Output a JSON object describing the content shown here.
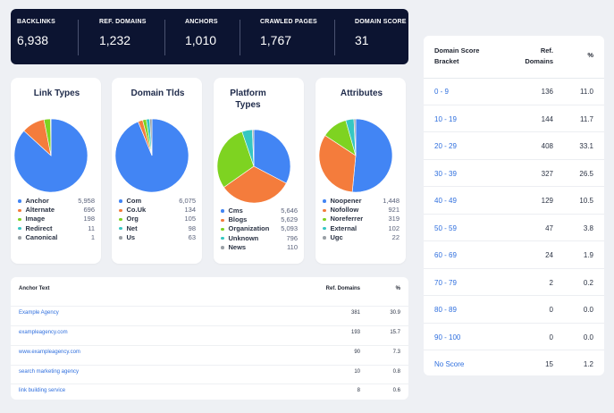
{
  "stats": [
    {
      "label": "BACKLINKS",
      "value": "6,938"
    },
    {
      "label": "REF. DOMAINS",
      "value": "1,232"
    },
    {
      "label": "ANCHORS",
      "value": "1,010"
    },
    {
      "label": "CRAWLED PAGES",
      "value": "1,767"
    },
    {
      "label": "DOMAIN SCORE",
      "value": "31"
    }
  ],
  "colors": {
    "blue": "#4285f4",
    "orange": "#f47c3c",
    "green": "#7ed321",
    "teal": "#35c7c2",
    "gray": "#9aa0a6"
  },
  "cards": [
    {
      "title": "Link Types",
      "items": [
        {
          "name": "Anchor",
          "value": "5,958",
          "color": "#4285f4"
        },
        {
          "name": "Alternate",
          "value": "696",
          "color": "#f47c3c"
        },
        {
          "name": "Image",
          "value": "198",
          "color": "#7ed321"
        },
        {
          "name": "Redirect",
          "value": "11",
          "color": "#35c7c2"
        },
        {
          "name": "Canonical",
          "value": "1",
          "color": "#9aa0a6"
        }
      ]
    },
    {
      "title": "Domain Tlds",
      "items": [
        {
          "name": "Com",
          "value": "6,075",
          "color": "#4285f4"
        },
        {
          "name": "Co.Uk",
          "value": "134",
          "color": "#f47c3c"
        },
        {
          "name": "Org",
          "value": "105",
          "color": "#7ed321"
        },
        {
          "name": "Net",
          "value": "98",
          "color": "#35c7c2"
        },
        {
          "name": "Us",
          "value": "63",
          "color": "#9aa0a6"
        }
      ]
    },
    {
      "title": "Platform Types",
      "items": [
        {
          "name": "Cms",
          "value": "5,646",
          "color": "#4285f4"
        },
        {
          "name": "Blogs",
          "value": "5,629",
          "color": "#f47c3c"
        },
        {
          "name": "Organization",
          "value": "5,093",
          "color": "#7ed321"
        },
        {
          "name": "Unknown",
          "value": "796",
          "color": "#35c7c2"
        },
        {
          "name": "News",
          "value": "110",
          "color": "#9aa0a6"
        }
      ]
    },
    {
      "title": "Attributes",
      "items": [
        {
          "name": "Noopener",
          "value": "1,448",
          "color": "#4285f4"
        },
        {
          "name": "Nofollow",
          "value": "921",
          "color": "#f47c3c"
        },
        {
          "name": "Noreferrer",
          "value": "319",
          "color": "#7ed321"
        },
        {
          "name": "External",
          "value": "102",
          "color": "#35c7c2"
        },
        {
          "name": "Ugc",
          "value": "22",
          "color": "#9aa0a6"
        }
      ]
    }
  ],
  "anchor_table": {
    "headers": [
      "Anchor Text",
      "Ref. Domains",
      "%"
    ],
    "rows": [
      {
        "text": "Example Agency",
        "domains": "381",
        "pct": "30.9"
      },
      {
        "text": "exampleagency.com",
        "domains": "193",
        "pct": "15.7"
      },
      {
        "text": "www.exampleagency.com",
        "domains": "90",
        "pct": "7.3"
      },
      {
        "text": "search marketing agency",
        "domains": "10",
        "pct": "0.8"
      },
      {
        "text": "link building service",
        "domains": "8",
        "pct": "0.6"
      }
    ]
  },
  "score_table": {
    "headers": [
      "Domain Score Bracket",
      "Ref. Domains",
      "%"
    ],
    "rows": [
      {
        "bracket": "0 - 9",
        "domains": "136",
        "pct": "11.0"
      },
      {
        "bracket": "10 - 19",
        "domains": "144",
        "pct": "11.7"
      },
      {
        "bracket": "20 - 29",
        "domains": "408",
        "pct": "33.1"
      },
      {
        "bracket": "30 - 39",
        "domains": "327",
        "pct": "26.5"
      },
      {
        "bracket": "40 - 49",
        "domains": "129",
        "pct": "10.5"
      },
      {
        "bracket": "50 - 59",
        "domains": "47",
        "pct": "3.8"
      },
      {
        "bracket": "60 - 69",
        "domains": "24",
        "pct": "1.9"
      },
      {
        "bracket": "70 - 79",
        "domains": "2",
        "pct": "0.2"
      },
      {
        "bracket": "80 - 89",
        "domains": "0",
        "pct": "0.0"
      },
      {
        "bracket": "90 - 100",
        "domains": "0",
        "pct": "0.0"
      },
      {
        "bracket": "No Score",
        "domains": "15",
        "pct": "1.2"
      }
    ]
  }
}
